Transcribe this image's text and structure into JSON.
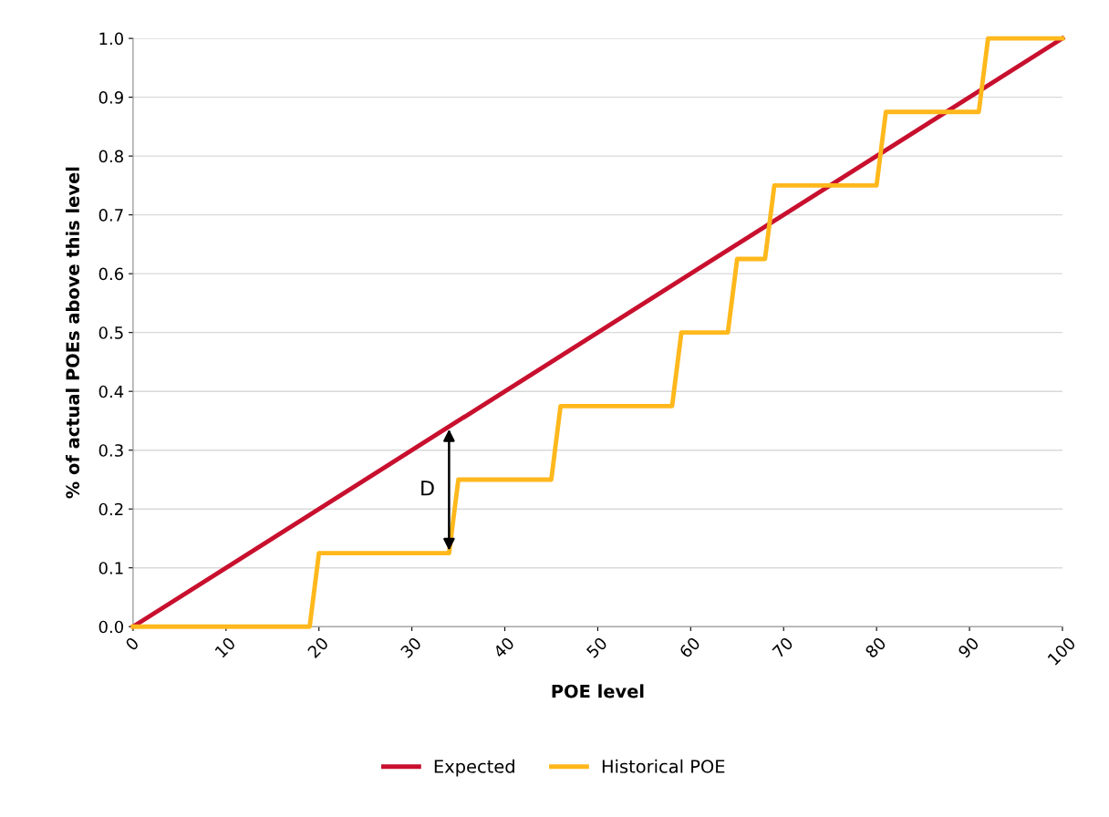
{
  "chart_data": {
    "type": "line",
    "xlabel": "POE level",
    "ylabel": "% of actual POEs above this level",
    "xlim": [
      0,
      100
    ],
    "xticks": [
      0,
      10,
      20,
      30,
      40,
      50,
      60,
      70,
      80,
      90,
      100
    ],
    "ylim": [
      0,
      1.0
    ],
    "yticks": [
      {
        "value": 0,
        "label": "0.0"
      },
      0.1,
      0.2,
      0.3,
      0.4,
      0.5,
      0.6,
      0.7,
      0.8,
      0.9,
      {
        "value": 1.0,
        "label": "1.0"
      }
    ],
    "grid": "y",
    "legend": "bottom",
    "marker": "none",
    "line_style": "solid",
    "series": [
      {
        "name": "Expected",
        "color": "#c8102e",
        "x": [
          0,
          100
        ],
        "values": [
          0,
          1.0
        ]
      },
      {
        "name": "Historical POE",
        "color": "#ffb81c",
        "x": [
          0,
          19,
          20,
          34,
          35,
          45,
          46,
          58,
          59,
          64,
          65,
          68,
          69,
          80,
          81,
          91,
          92,
          100
        ],
        "values": [
          0,
          0,
          0.125,
          0.125,
          0.25,
          0.25,
          0.375,
          0.375,
          0.5,
          0.5,
          0.625,
          0.625,
          0.75,
          0.75,
          0.875,
          0.875,
          1.0,
          1.0
        ]
      }
    ],
    "annotations": [
      {
        "text": "D",
        "x": 34,
        "y": 0.34
      }
    ]
  }
}
